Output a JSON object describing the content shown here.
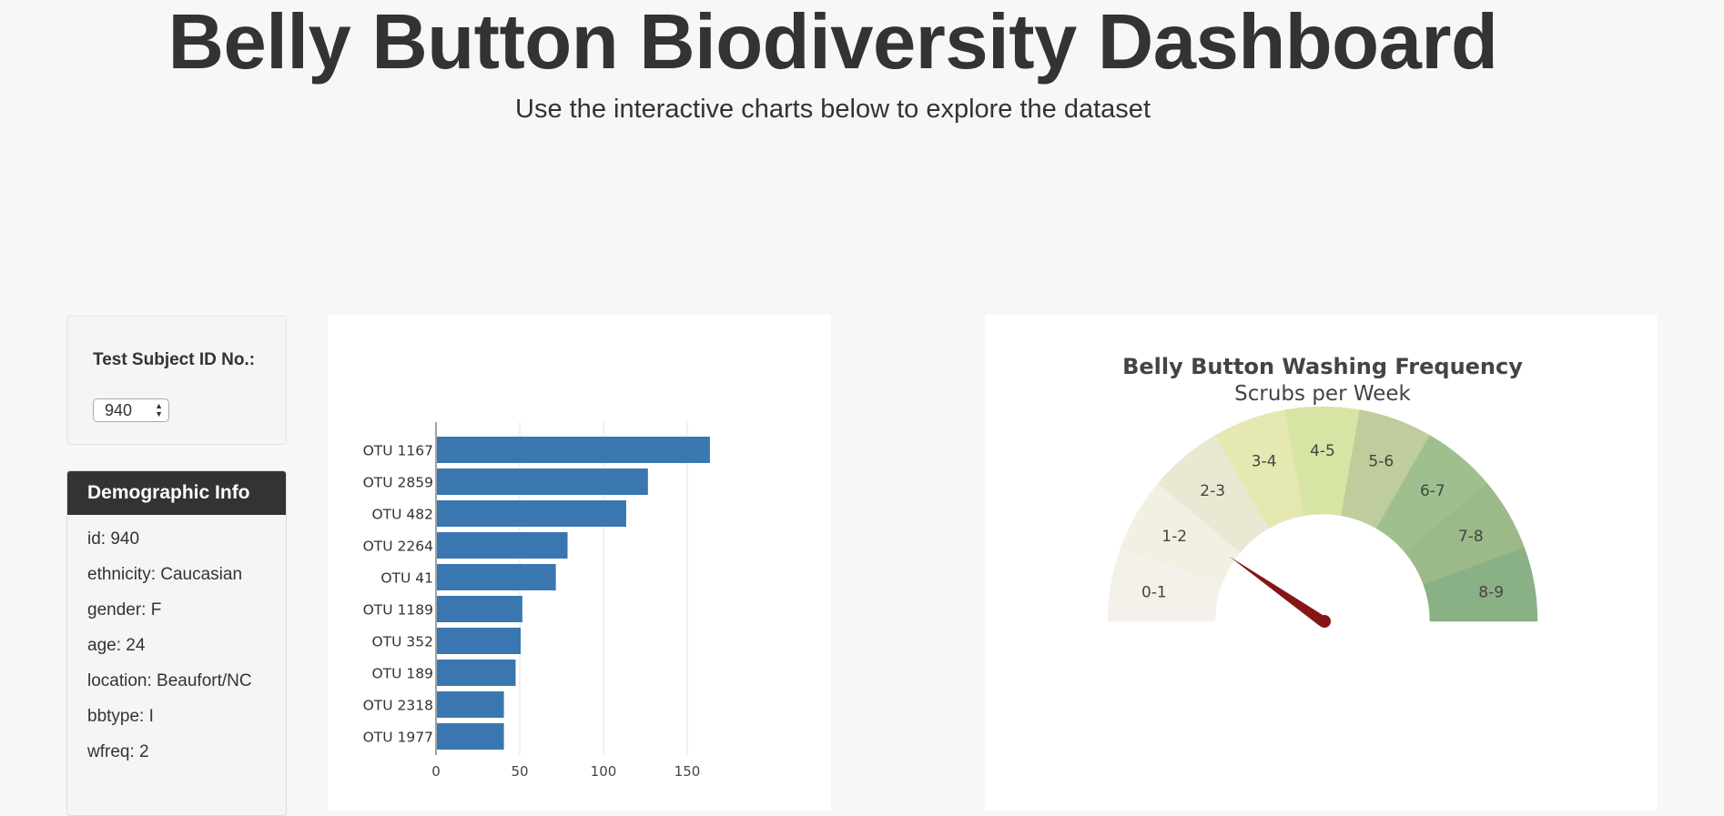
{
  "header": {
    "title": "Belly Button Biodiversity Dashboard",
    "subtitle": "Use the interactive charts below to explore the dataset"
  },
  "selector": {
    "label": "Test Subject ID No.:",
    "selected": "940"
  },
  "demographics": {
    "heading": "Demographic Info",
    "items": [
      "id: 940",
      "ethnicity: Caucasian",
      "gender: F",
      "age: 24",
      "location: Beaufort/NC",
      "bbtype: I",
      "wfreq: 2"
    ]
  },
  "chart_data": [
    {
      "type": "bar",
      "orientation": "horizontal",
      "categories": [
        "OTU 1167",
        "OTU 2859",
        "OTU 482",
        "OTU 2264",
        "OTU 41",
        "OTU 1189",
        "OTU 352",
        "OTU 189",
        "OTU 2318",
        "OTU 1977"
      ],
      "values": [
        163,
        126,
        113,
        78,
        71,
        51,
        50,
        47,
        40,
        40
      ],
      "xlim": [
        0,
        175
      ],
      "xticks": [
        "0",
        "50",
        "100",
        "150"
      ],
      "xtick_values": [
        0,
        50,
        100,
        150
      ],
      "grid": true,
      "color": "#3a77b0"
    },
    {
      "type": "gauge",
      "title": "Belly Button Washing Frequency",
      "subtitle": "Scrubs per Week",
      "value": 2,
      "range": [
        0,
        9
      ],
      "sections": [
        {
          "label": "0-1",
          "color": "#f4f1ea"
        },
        {
          "label": "1-2",
          "color": "#f1f0e3"
        },
        {
          "label": "2-3",
          "color": "#e9e8d2"
        },
        {
          "label": "3-4",
          "color": "#e5e8b0"
        },
        {
          "label": "4-5",
          "color": "#d6e5a4"
        },
        {
          "label": "5-6",
          "color": "#bfcc9b"
        },
        {
          "label": "6-7",
          "color": "#9fc08e"
        },
        {
          "label": "7-8",
          "color": "#9cb98a"
        },
        {
          "label": "8-9",
          "color": "#8ab085"
        }
      ],
      "needle_color": "#861616"
    }
  ]
}
